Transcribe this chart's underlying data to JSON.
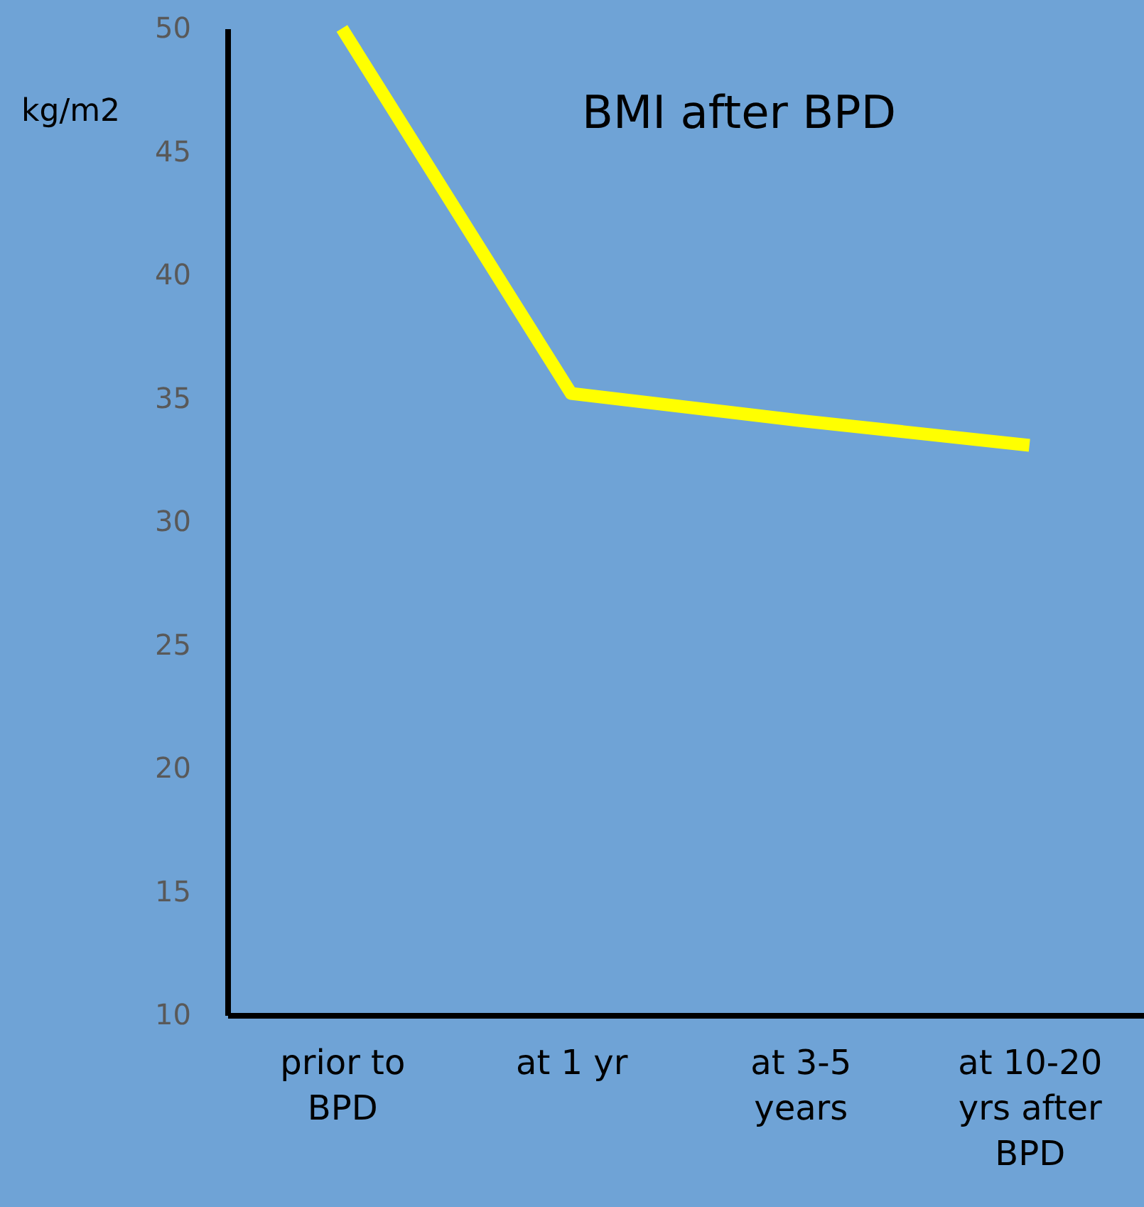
{
  "chart_data": {
    "type": "line",
    "title": "BMI after  BPD",
    "ylabel": "kg/m2",
    "categories": [
      "prior to BPD",
      "at 1 yr",
      "at 3-5 years",
      "at 10-20 yrs after BPD"
    ],
    "series": [
      {
        "color": "#ffff00",
        "values": [
          50,
          35.2,
          34.1,
          33.1
        ]
      }
    ],
    "ylim": [
      10,
      50
    ],
    "yticks": [
      10,
      15,
      20,
      25,
      30,
      35,
      40,
      45,
      50
    ],
    "grid": false,
    "marker": "none",
    "line_style": "solid"
  }
}
